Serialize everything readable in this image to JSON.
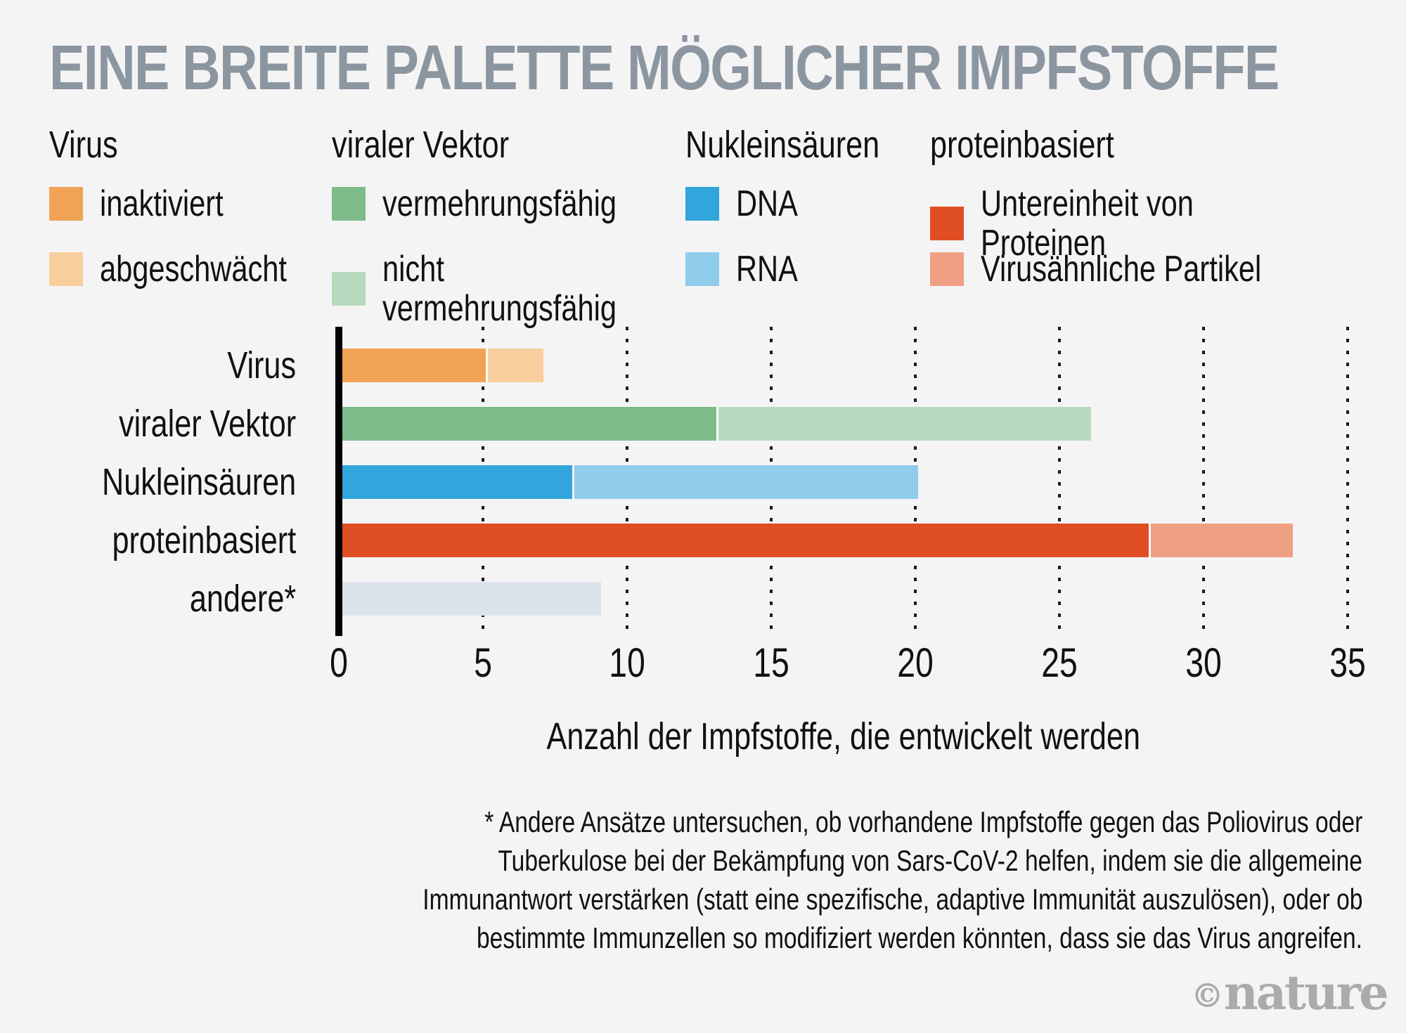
{
  "title": "EINE BREITE PALETTE MÖGLICHER IMPFSTOFFE",
  "colors": {
    "background": "#f4f4f5",
    "title_gray": "#8C96A1",
    "logo_gray": "#ABABAB",
    "axis_black": "#000000"
  },
  "legend": {
    "groups": [
      {
        "header": "Virus",
        "items": [
          {
            "label": "inaktiviert",
            "color": "#F0A355"
          },
          {
            "label": "abgeschwächt",
            "color": "#F8CE9D"
          }
        ]
      },
      {
        "header": "viraler Vektor",
        "items": [
          {
            "label": "vermehrungsfähig",
            "color": "#7DBB8B"
          },
          {
            "label": "nicht\nvermehrungsfähig",
            "color": "#B7DABE"
          }
        ]
      },
      {
        "header": "Nukleinsäuren",
        "items": [
          {
            "label": "DNA",
            "color": "#31A5DC"
          },
          {
            "label": "RNA",
            "color": "#90CCEC"
          }
        ]
      },
      {
        "header": "proteinbasiert",
        "items": [
          {
            "label": "Untereinheit von Proteinen",
            "color": "#E04E24"
          },
          {
            "label": "Virusähnliche Partikel",
            "color": "#EFA083"
          }
        ]
      }
    ]
  },
  "chart_data": {
    "type": "bar",
    "orientation": "horizontal-stacked",
    "title": "EINE BREITE PALETTE MÖGLICHER IMPFSTOFFE",
    "xlabel": "Anzahl der Impfstoffe, die entwickelt werden",
    "xlim": [
      0,
      35
    ],
    "xticks": [
      0,
      5,
      10,
      15,
      20,
      25,
      30,
      35
    ],
    "grid": "dotted-vertical",
    "categories": [
      "Virus",
      "viraler Vektor",
      "Nukleinsäuren",
      "proteinbasiert",
      "andere*"
    ],
    "rows": [
      {
        "category": "Virus",
        "segments": [
          {
            "label": "inaktiviert",
            "value": 5,
            "color": "#F0A355"
          },
          {
            "label": "abgeschwächt",
            "value": 2,
            "color": "#F8CE9D"
          }
        ]
      },
      {
        "category": "viraler Vektor",
        "segments": [
          {
            "label": "vermehrungsfähig",
            "value": 13,
            "color": "#7DBB8B"
          },
          {
            "label": "nicht vermehrungsfähig",
            "value": 13,
            "color": "#B7DABE"
          }
        ]
      },
      {
        "category": "Nukleinsäuren",
        "segments": [
          {
            "label": "DNA",
            "value": 8,
            "color": "#31A5DC"
          },
          {
            "label": "RNA",
            "value": 12,
            "color": "#90CCEC"
          }
        ]
      },
      {
        "category": "proteinbasiert",
        "segments": [
          {
            "label": "Untereinheit von Proteinen",
            "value": 28,
            "color": "#E04E24"
          },
          {
            "label": "Virusähnliche Partikel",
            "value": 5,
            "color": "#EFA083"
          }
        ]
      },
      {
        "category": "andere*",
        "segments": [
          {
            "label": "andere",
            "value": 9,
            "color": "#DDE3EA"
          }
        ]
      }
    ]
  },
  "footnote": {
    "lines": [
      "* Andere Ansätze untersuchen, ob vorhandene Impfstoffe gegen das Poliovirus oder",
      "Tuberkulose bei der Bekämpfung von Sars-CoV-2 helfen, indem sie die allgemeine",
      "Immunantwort verstärken (statt eine spezifische, adaptive Immunität auszulösen), oder ob",
      "bestimmte Immunzellen so modifiziert werden könnten, dass sie das Virus angreifen."
    ]
  },
  "logo": {
    "copyright": "©",
    "brand": "nature"
  }
}
